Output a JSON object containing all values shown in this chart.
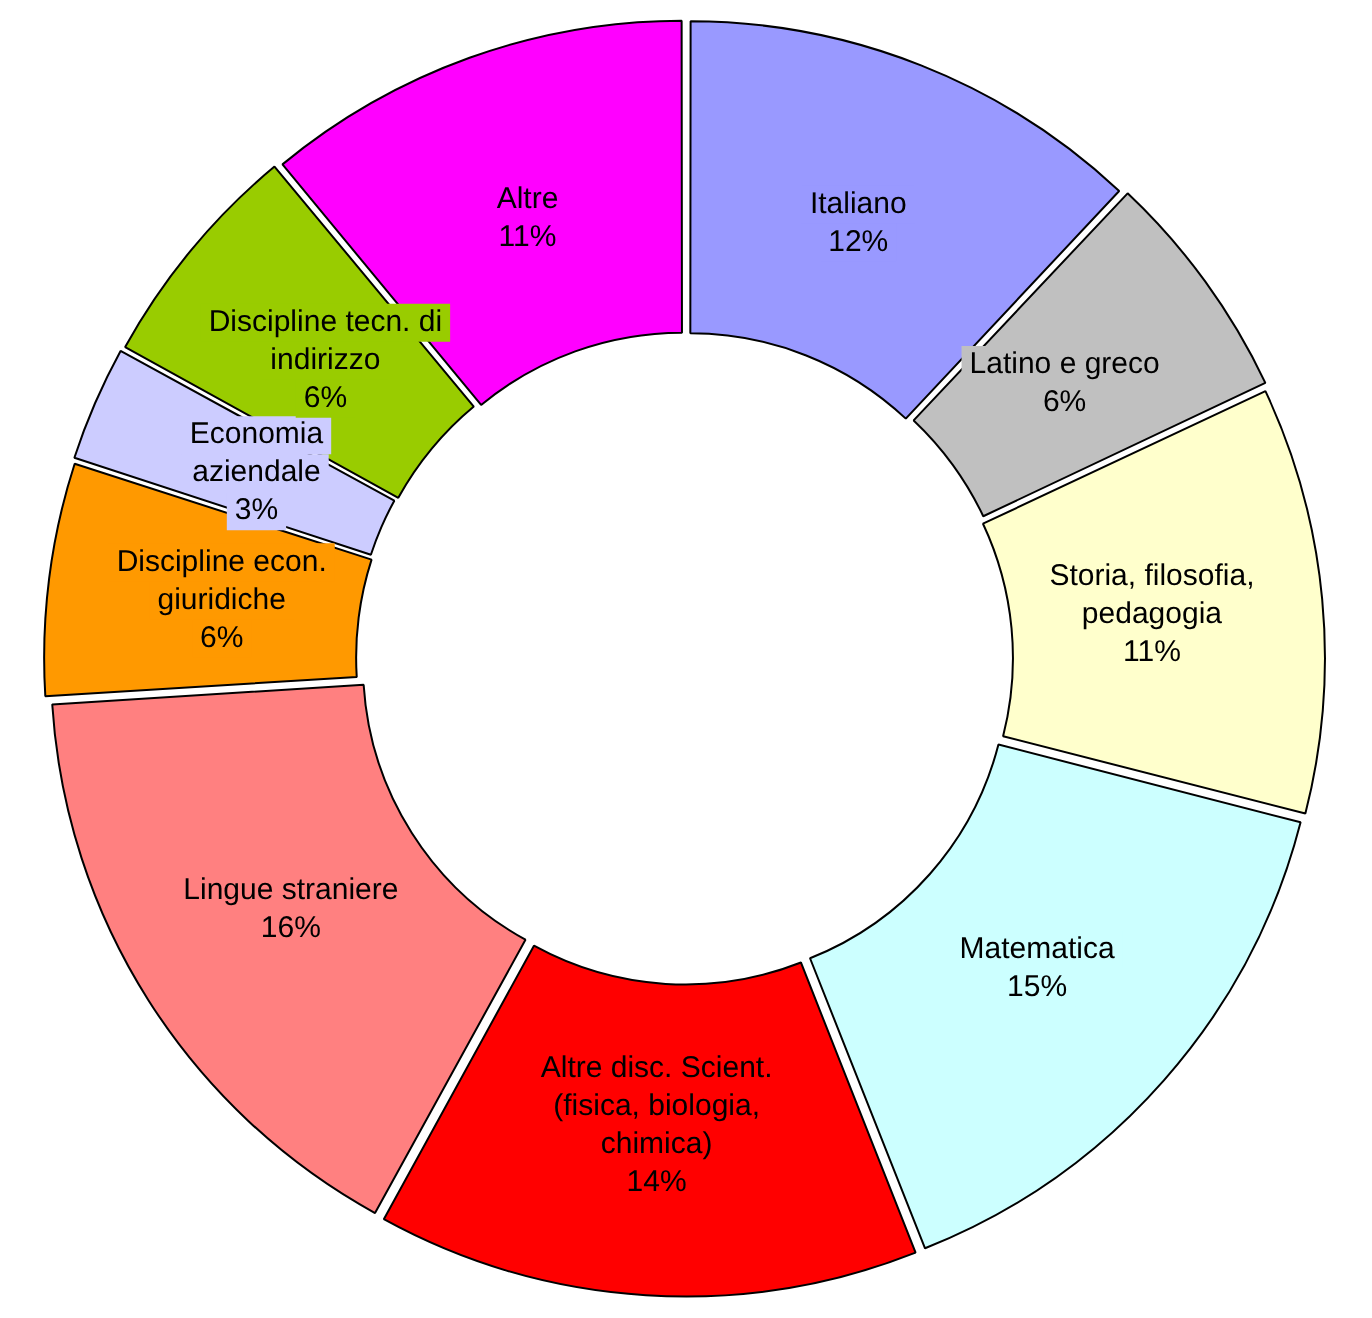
{
  "chart_data": {
    "type": "donut",
    "categories": [
      "Italiano",
      "Latino e greco",
      "Storia, filosofia, pedagogia",
      "Matematica",
      "Altre disc. Scient. (fisica, biologia, chimica)",
      "Lingue straniere",
      "Discipline econ. giuridiche",
      "Economia aziendale",
      "Discipline tecn. di indirizzo",
      "Altre"
    ],
    "values": [
      12,
      6,
      11,
      15,
      14,
      16,
      6,
      3,
      6,
      11
    ],
    "value_labels": [
      "12%",
      "6%",
      "11%",
      "15%",
      "14%",
      "16%",
      "6%",
      "3%",
      "6%",
      "11%"
    ],
    "colors": [
      "#9999ff",
      "#c0c0c0",
      "#ffffcc",
      "#ccffff",
      "#ff0000",
      "#ff8080",
      "#ff9900",
      "#ccccff",
      "#99cc00",
      "#ff00ff"
    ],
    "legend": false
  }
}
